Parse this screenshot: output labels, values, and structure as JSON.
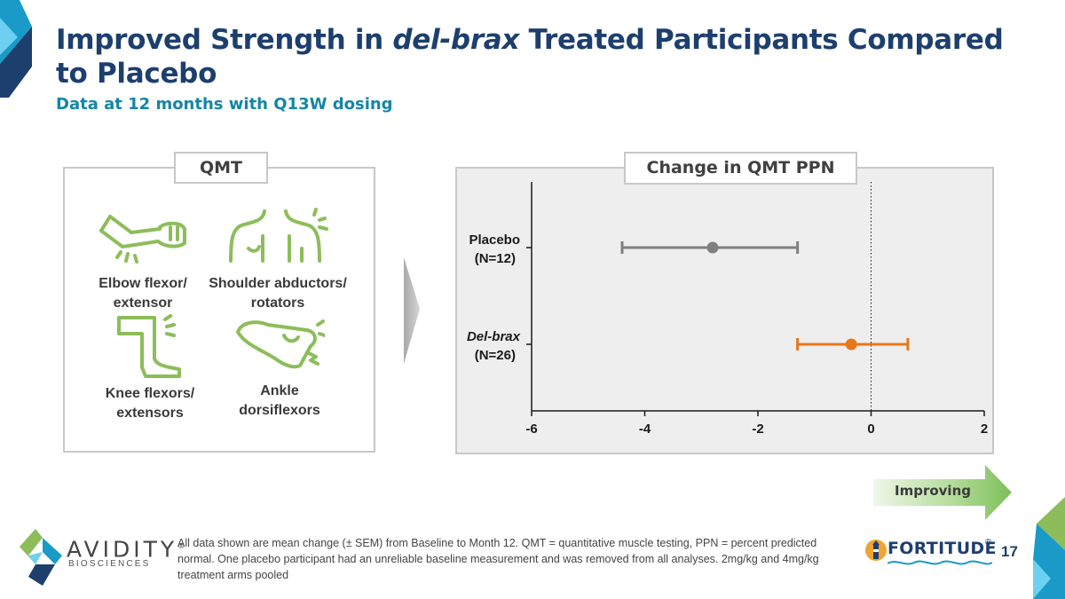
{
  "title": {
    "part1": "Improved Strength in ",
    "italic": "del-brax",
    "part2": " Treated Participants Compared to Placebo"
  },
  "subtitle": "Data at 12 months with Q13W dosing",
  "qmt_panel": {
    "label": "QMT",
    "muscle_groups": [
      {
        "name": "Elbow flexor/ extensor",
        "icon": "elbow-arm-icon"
      },
      {
        "name": "Shoulder abductors/ rotators",
        "icon": "shoulder-icon"
      },
      {
        "name": "Knee flexors/ extensors",
        "icon": "knee-leg-icon"
      },
      {
        "name": "Ankle dorsiflexors",
        "icon": "ankle-foot-icon"
      }
    ]
  },
  "chart_data": {
    "type": "forest",
    "title": "Change in QMT PPN",
    "x_ticks": [
      -6,
      -4,
      -2,
      0,
      2
    ],
    "xlim": [
      -6,
      2
    ],
    "reference_line": 0,
    "series": [
      {
        "label": "Placebo",
        "n": "(N=12)",
        "mean": -2.8,
        "lower": -4.4,
        "upper": -1.3,
        "color": "#7f7f7f",
        "italic": false
      },
      {
        "label": "Del-brax",
        "n": "(N=26)",
        "mean": -0.35,
        "lower": -1.3,
        "upper": 0.65,
        "color": "#e8771c",
        "italic": true
      }
    ]
  },
  "improving_label": "Improving",
  "colors": {
    "navy": "#1d3f6e",
    "teal": "#1585a8",
    "icon_green": "#8cbd5a",
    "improving_green": "#7cc05a",
    "placebo_gray": "#7f7f7f",
    "delbrax_orange": "#e8771c"
  },
  "footer": {
    "company_name": "AVIDITY",
    "company_sub": "BIOSCIENCES",
    "registered": "®",
    "footnote": "All data shown are mean change (± SEM) from Baseline to Month 12. QMT = quantitative muscle testing, PPN = percent predicted normal. One placebo participant had an unreliable baseline measurement and was removed from all analyses. 2mg/kg and 4mg/kg treatment arms pooled",
    "program_name": "FORTITUDE",
    "program_reg": "®",
    "page_number": "17"
  }
}
